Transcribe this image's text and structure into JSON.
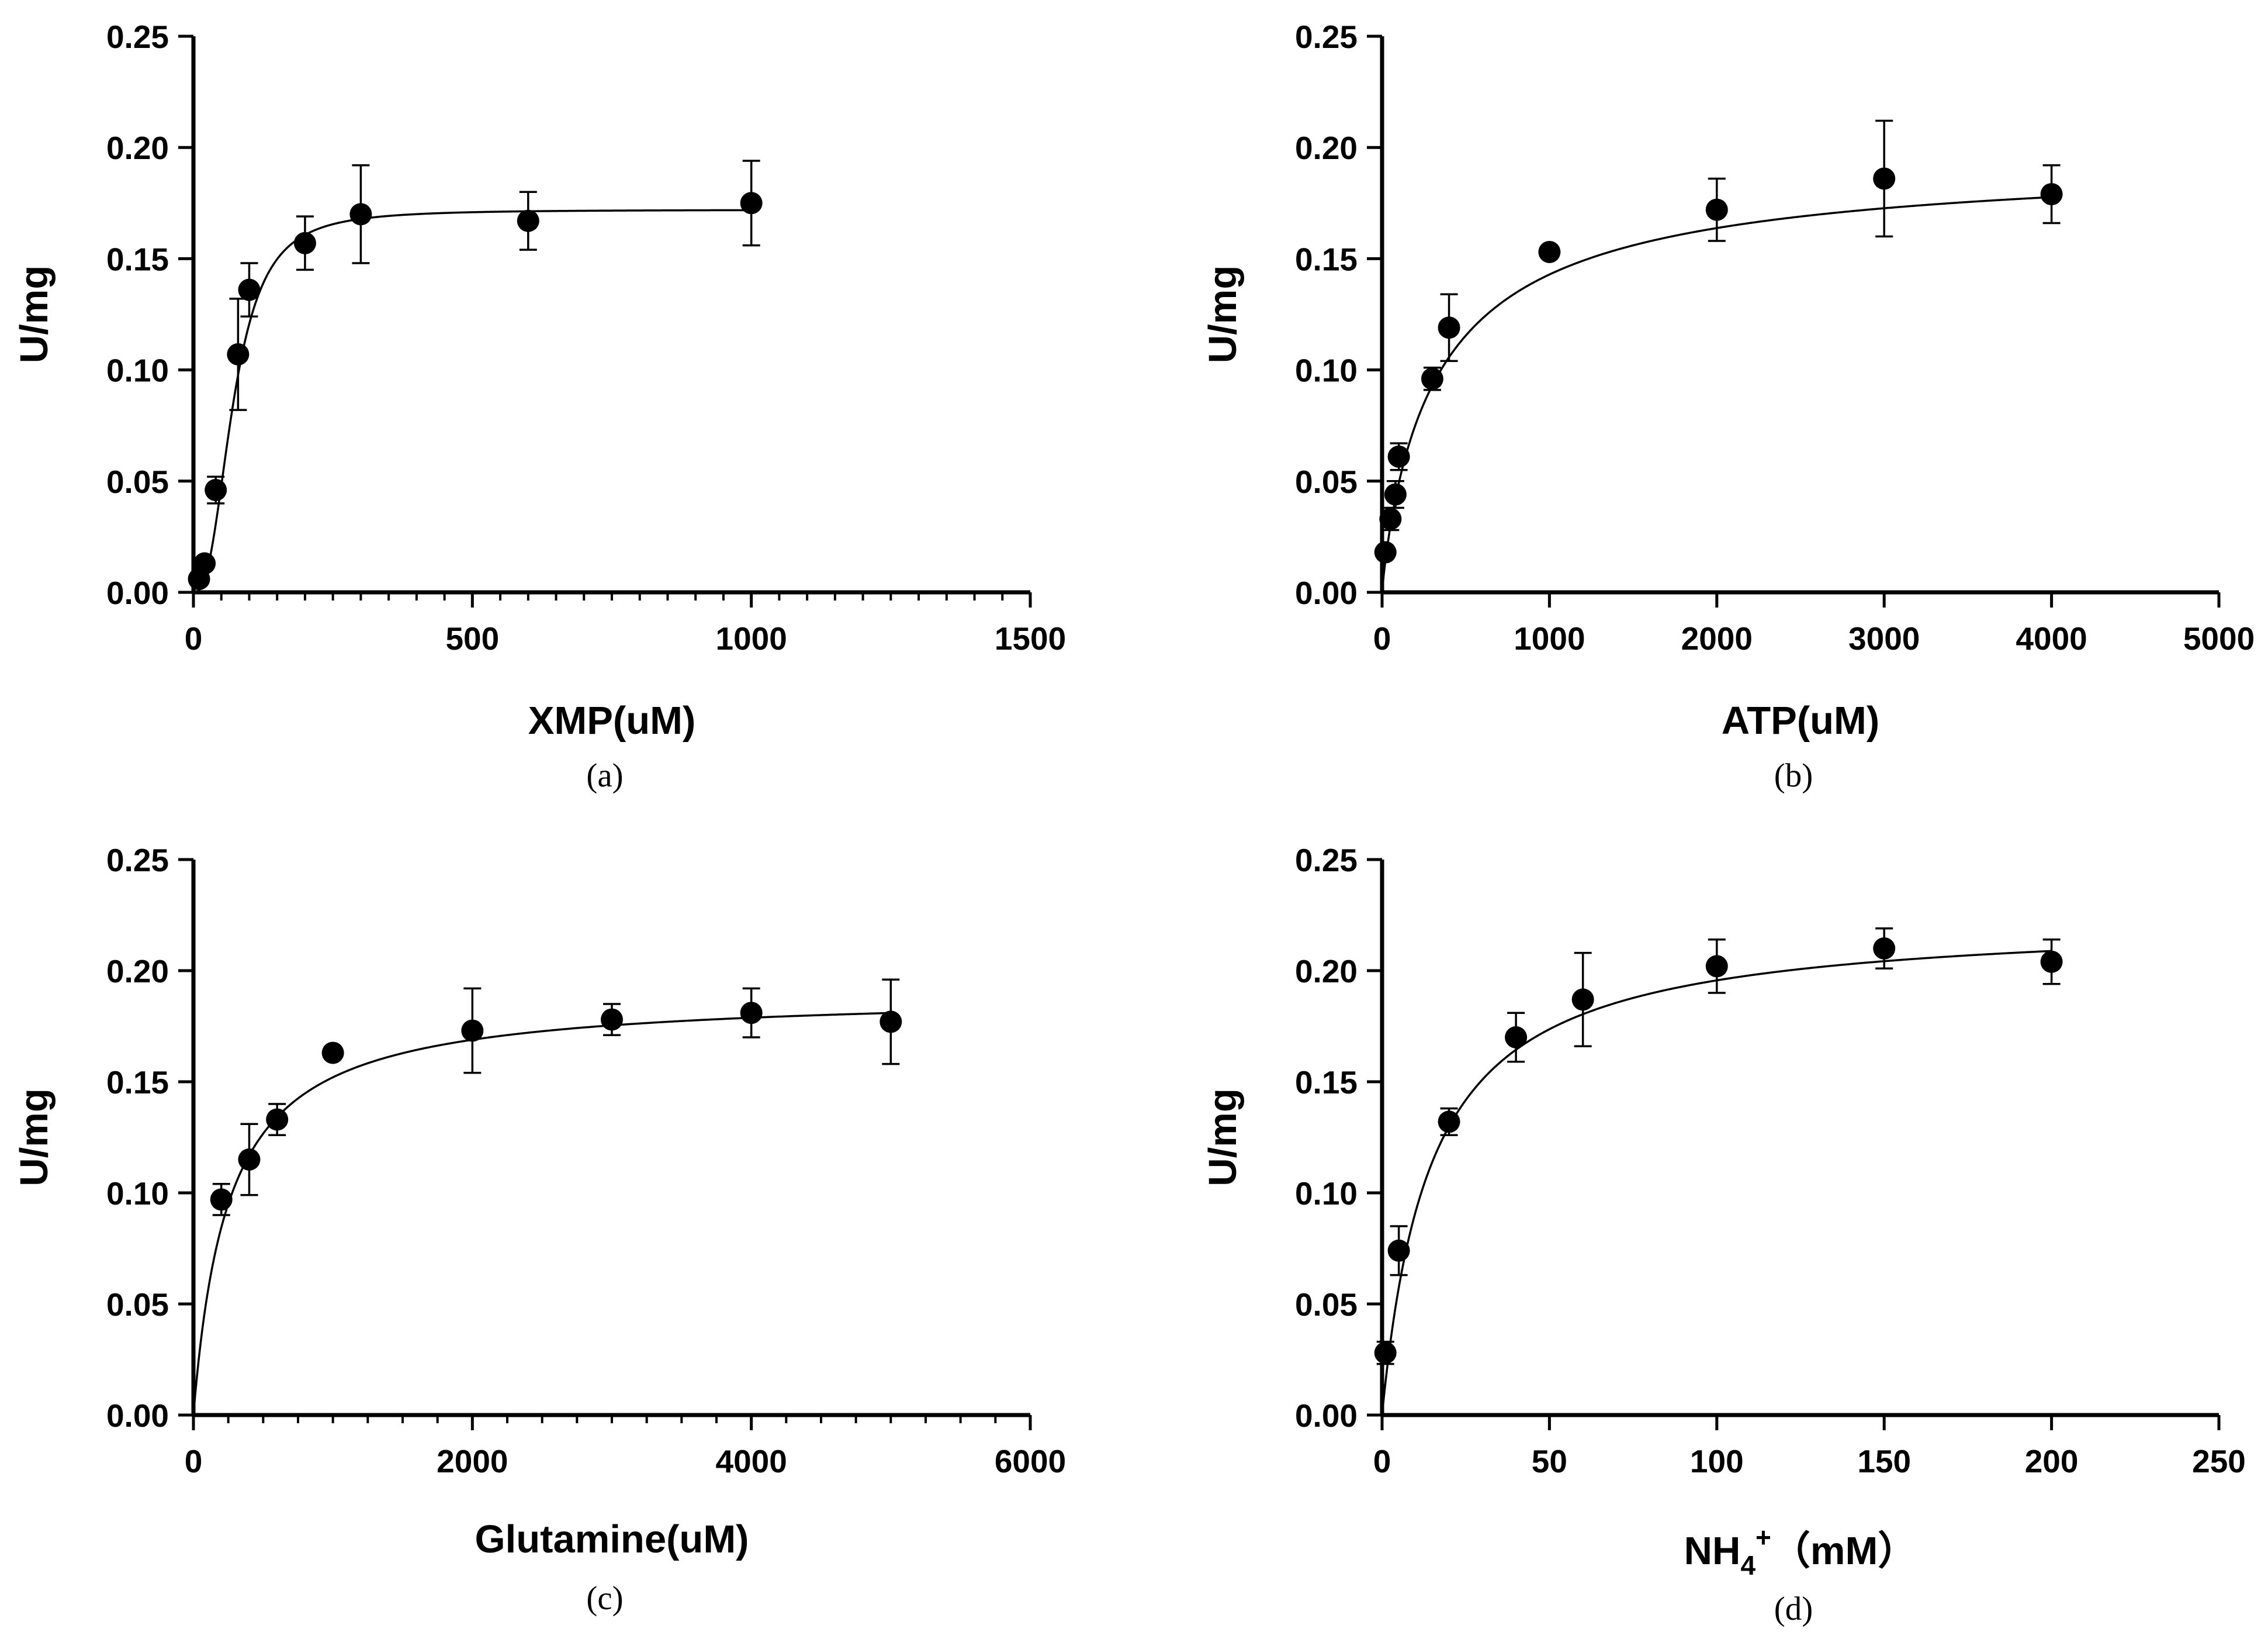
{
  "chart_data": [
    {
      "id": "a",
      "type": "scatter",
      "panel_label": "(a)",
      "xlabel": "XMP(uM)",
      "ylabel": "U/mg",
      "xlim": [
        0,
        1500
      ],
      "ylim": [
        0,
        0.25
      ],
      "xticks": [
        0,
        500,
        1000,
        1500
      ],
      "xtick_labels": [
        "0",
        "500",
        "1000",
        "1500"
      ],
      "yticks": [
        0,
        0.05,
        0.1,
        0.15,
        0.2,
        0.25
      ],
      "ytick_labels": [
        "0.00",
        "0.05",
        "0.10",
        "0.15",
        "0.20",
        "0.25"
      ],
      "x_minor_step": 50,
      "points": [
        {
          "x": 10,
          "y": 0.006,
          "err": 0
        },
        {
          "x": 20,
          "y": 0.013,
          "err": 0
        },
        {
          "x": 40,
          "y": 0.046,
          "err": 0.006
        },
        {
          "x": 80,
          "y": 0.107,
          "err": 0.025
        },
        {
          "x": 100,
          "y": 0.136,
          "err": 0.012
        },
        {
          "x": 200,
          "y": 0.157,
          "err": 0.012
        },
        {
          "x": 300,
          "y": 0.17,
          "err": 0.022
        },
        {
          "x": 600,
          "y": 0.167,
          "err": 0.013
        },
        {
          "x": 1000,
          "y": 0.175,
          "err": 0.019
        }
      ],
      "fit": {
        "model": "hill",
        "vmax": 0.172,
        "k": 72,
        "n": 2.6
      }
    },
    {
      "id": "b",
      "type": "scatter",
      "panel_label": "(b)",
      "xlabel": "ATP(uM)",
      "ylabel": "U/mg",
      "xlim": [
        0,
        5000
      ],
      "ylim": [
        0,
        0.25
      ],
      "xticks": [
        0,
        1000,
        2000,
        3000,
        4000,
        5000
      ],
      "xtick_labels": [
        "0",
        "1000",
        "2000",
        "3000",
        "4000",
        "5000"
      ],
      "yticks": [
        0,
        0.05,
        0.1,
        0.15,
        0.2,
        0.25
      ],
      "ytick_labels": [
        "0.00",
        "0.05",
        "0.10",
        "0.15",
        "0.20",
        "0.25"
      ],
      "x_minor_step": 0,
      "points": [
        {
          "x": 20,
          "y": 0.018,
          "err": 0
        },
        {
          "x": 50,
          "y": 0.033,
          "err": 0.005
        },
        {
          "x": 80,
          "y": 0.044,
          "err": 0.006
        },
        {
          "x": 100,
          "y": 0.061,
          "err": 0.006
        },
        {
          "x": 300,
          "y": 0.096,
          "err": 0.005
        },
        {
          "x": 400,
          "y": 0.119,
          "err": 0.015
        },
        {
          "x": 1000,
          "y": 0.153,
          "err": 0
        },
        {
          "x": 2000,
          "y": 0.172,
          "err": 0.014
        },
        {
          "x": 3000,
          "y": 0.186,
          "err": 0.026
        },
        {
          "x": 4000,
          "y": 0.179,
          "err": 0.013
        }
      ],
      "fit": {
        "model": "hill",
        "vmax": 0.197,
        "k": 340,
        "n": 0.9
      }
    },
    {
      "id": "c",
      "type": "scatter",
      "panel_label": "(c)",
      "xlabel": "Glutamine(uM)",
      "ylabel": "U/mg",
      "xlim": [
        0,
        6000
      ],
      "ylim": [
        0,
        0.25
      ],
      "xticks": [
        0,
        2000,
        4000,
        6000
      ],
      "xtick_labels": [
        "0",
        "2000",
        "4000",
        "6000"
      ],
      "yticks": [
        0,
        0.05,
        0.1,
        0.15,
        0.2,
        0.25
      ],
      "ytick_labels": [
        "0.00",
        "0.05",
        "0.10",
        "0.15",
        "0.20",
        "0.25"
      ],
      "x_minor_step": 250,
      "points": [
        {
          "x": 200,
          "y": 0.097,
          "err": 0.007
        },
        {
          "x": 400,
          "y": 0.115,
          "err": 0.016
        },
        {
          "x": 600,
          "y": 0.133,
          "err": 0.007
        },
        {
          "x": 1000,
          "y": 0.163,
          "err": 0
        },
        {
          "x": 2000,
          "y": 0.173,
          "err": 0.019
        },
        {
          "x": 3000,
          "y": 0.178,
          "err": 0.007
        },
        {
          "x": 4000,
          "y": 0.181,
          "err": 0.011
        },
        {
          "x": 5000,
          "y": 0.177,
          "err": 0.019
        }
      ],
      "fit": {
        "model": "mm",
        "vmax": 0.19,
        "k": 250
      }
    },
    {
      "id": "d",
      "type": "scatter",
      "panel_label": "(d)",
      "xlabel": "NH4+（mM）",
      "xlabel_parts": {
        "base": "NH",
        "sub": "4",
        "sup": "+",
        "rest": "（mM）"
      },
      "ylabel": "U/mg",
      "xlim": [
        0,
        250
      ],
      "ylim": [
        0,
        0.25
      ],
      "xticks": [
        0,
        50,
        100,
        150,
        200,
        250
      ],
      "xtick_labels": [
        "0",
        "50",
        "100",
        "150",
        "200",
        "250"
      ],
      "yticks": [
        0,
        0.05,
        0.1,
        0.15,
        0.2,
        0.25
      ],
      "ytick_labels": [
        "0.00",
        "0.05",
        "0.10",
        "0.15",
        "0.20",
        "0.25"
      ],
      "x_minor_step": 0,
      "points": [
        {
          "x": 1,
          "y": 0.028,
          "err": 0.005
        },
        {
          "x": 5,
          "y": 0.074,
          "err": 0.011
        },
        {
          "x": 20,
          "y": 0.132,
          "err": 0.006
        },
        {
          "x": 40,
          "y": 0.17,
          "err": 0.011
        },
        {
          "x": 60,
          "y": 0.187,
          "err": 0.021
        },
        {
          "x": 100,
          "y": 0.202,
          "err": 0.012
        },
        {
          "x": 150,
          "y": 0.21,
          "err": 0.009
        },
        {
          "x": 200,
          "y": 0.204,
          "err": 0.01
        }
      ],
      "fit": {
        "model": "mm",
        "vmax": 0.224,
        "k": 14.5
      }
    }
  ]
}
